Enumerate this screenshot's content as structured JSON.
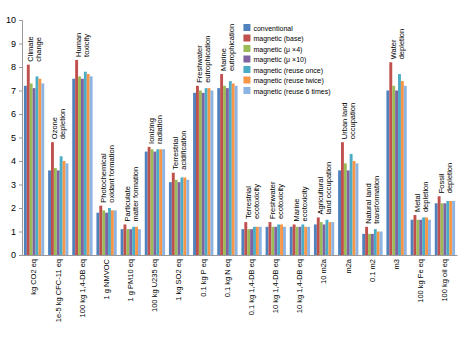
{
  "chart_data": {
    "type": "bar",
    "categories": [
      "kg CO2 eq",
      "1e-5 kg CFC-11 eq",
      "100 kg 1,4-DB eq",
      "1 g NMVOC",
      "1 g PM10 eq",
      "100 kg U235 eq",
      "1 kg SO2 eq",
      "0.1 kg P eq",
      "0.1 kg N eq",
      "0.1 kg 1,4-DB eq",
      "10 kg 1,4-DB eq",
      "10 kg 1,4-DB eq",
      "10 m2a",
      "m2a",
      "0.1 m2",
      "m3",
      "100 kg Fe eq",
      "100 kg oil eq"
    ],
    "annotations": [
      "Climate change",
      "Ozone depletion",
      "Human toxicity",
      "Photochemical oxidant formation",
      "Particulate matter formation",
      "Ionizing radiation",
      "Terrestrial acidification",
      "Freshwater eutrophication",
      "Marine eutrophication",
      "Terrestrial ecotoxicity",
      "Freshwater ecotoxicity",
      "Marine ecotoxicity",
      "Agricultural land occupation",
      "Urban land occupation",
      "Natural land transformation",
      "Water depletion",
      "Metal depletion",
      "Fossil depletion"
    ],
    "series": [
      {
        "name": "conventional",
        "color": "#4f81bd",
        "values": [
          7.2,
          3.6,
          7.5,
          1.8,
          1.1,
          4.4,
          3.1,
          6.9,
          7.1,
          1.1,
          1.2,
          1.2,
          1.3,
          3.6,
          0.9,
          7.0,
          1.5,
          2.2
        ]
      },
      {
        "name": "magnetic (base)",
        "color": "#c0504d",
        "values": [
          8.1,
          4.8,
          8.3,
          2.1,
          1.3,
          4.6,
          3.5,
          7.2,
          7.7,
          1.4,
          1.4,
          1.3,
          1.6,
          4.8,
          1.2,
          8.2,
          1.7,
          2.5
        ]
      },
      {
        "name": "magnetic (μ ×4)",
        "color": "#9bbb59",
        "values": [
          7.3,
          3.7,
          7.6,
          1.9,
          1.1,
          4.5,
          3.2,
          7.0,
          7.2,
          1.1,
          1.2,
          1.2,
          1.4,
          3.9,
          0.9,
          7.2,
          1.5,
          2.2
        ]
      },
      {
        "name": "magnetic (μ ×10)",
        "color": "#8064a2",
        "values": [
          7.1,
          3.6,
          7.5,
          1.8,
          1.1,
          4.4,
          3.1,
          6.9,
          7.1,
          1.1,
          1.2,
          1.2,
          1.3,
          3.6,
          0.9,
          7.0,
          1.5,
          2.2
        ]
      },
      {
        "name": "magnetic (reuse once)",
        "color": "#4bacc6",
        "values": [
          7.6,
          4.2,
          7.8,
          2.0,
          1.2,
          4.5,
          3.3,
          7.1,
          7.4,
          1.2,
          1.3,
          1.3,
          1.5,
          4.3,
          1.1,
          7.7,
          1.6,
          2.3
        ]
      },
      {
        "name": "magnetic (reuse twice)",
        "color": "#f79646",
        "values": [
          7.5,
          4.0,
          7.7,
          1.9,
          1.2,
          4.5,
          3.3,
          7.1,
          7.3,
          1.2,
          1.3,
          1.2,
          1.4,
          4.0,
          1.0,
          7.4,
          1.6,
          2.3
        ]
      },
      {
        "name": "magnetic (reuse 6 times)",
        "color": "#8db3e2",
        "values": [
          7.3,
          3.9,
          7.6,
          1.9,
          1.1,
          4.5,
          3.2,
          7.0,
          7.2,
          1.2,
          1.2,
          1.2,
          1.4,
          3.9,
          1.0,
          7.2,
          1.5,
          2.3
        ]
      }
    ],
    "ylim": [
      0,
      10
    ],
    "yticks": [
      0,
      1,
      2,
      3,
      4,
      5,
      6,
      7,
      8,
      9,
      10
    ],
    "grid": false,
    "legend": "top"
  }
}
